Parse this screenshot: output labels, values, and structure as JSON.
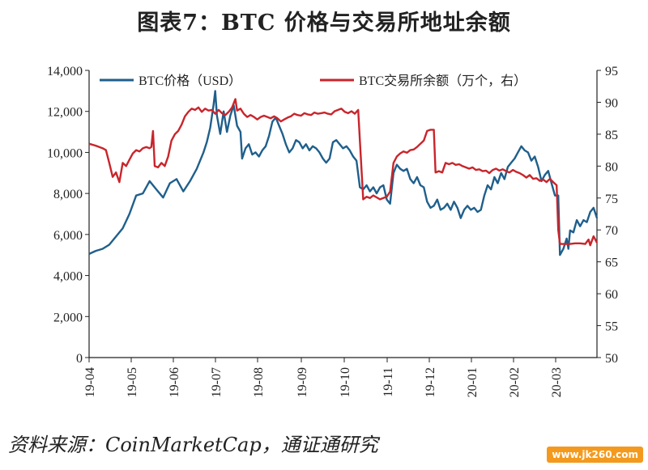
{
  "title": "图表7：BTC 价格与交易所地址余额",
  "source_note": "资料来源：CoinMarketCap，通证通研究",
  "watermark": "www.jk260.com",
  "colors": {
    "price": "#1f5f8b",
    "balance": "#c8252b",
    "axis": "#222222"
  },
  "chart_data": {
    "type": "line",
    "title": "BTC 价格与交易所地址余额",
    "x_ticks": [
      "19-04",
      "19-05",
      "19-06",
      "19-07",
      "19-08",
      "19-09",
      "19-10",
      "19-11",
      "19-12",
      "20-01",
      "20-02",
      "20-03"
    ],
    "y_left": {
      "lim": [
        0,
        14000
      ],
      "ticks": [
        0,
        2000,
        4000,
        6000,
        8000,
        10000,
        12000,
        14000
      ],
      "tick_labels": [
        "0",
        "2,000",
        "4,000",
        "6,000",
        "8,000",
        "10,000",
        "12,000",
        "14,000"
      ]
    },
    "y_right": {
      "lim": [
        50,
        95
      ],
      "ticks": [
        50,
        55,
        60,
        65,
        70,
        75,
        80,
        85,
        90,
        95
      ],
      "tick_labels": [
        "50",
        "55",
        "60",
        "65",
        "70",
        "75",
        "80",
        "85",
        "90",
        "95"
      ]
    },
    "legend_position": "top",
    "series": [
      {
        "name": "BTC价格（USD）",
        "axis": "left",
        "color": "#1f5f8b",
        "points": [
          [
            0,
            5050
          ],
          [
            4,
            5200
          ],
          [
            8,
            5300
          ],
          [
            12,
            5500
          ],
          [
            16,
            5900
          ],
          [
            20,
            6300
          ],
          [
            24,
            7000
          ],
          [
            28,
            7900
          ],
          [
            32,
            8000
          ],
          [
            36,
            8600
          ],
          [
            40,
            8200
          ],
          [
            44,
            7800
          ],
          [
            48,
            8500
          ],
          [
            52,
            8700
          ],
          [
            56,
            8100
          ],
          [
            60,
            8600
          ],
          [
            64,
            9200
          ],
          [
            68,
            10000
          ],
          [
            70,
            10500
          ],
          [
            72,
            11200
          ],
          [
            74,
            12300
          ],
          [
            75,
            13000
          ],
          [
            76,
            11800
          ],
          [
            78,
            10900
          ],
          [
            80,
            12000
          ],
          [
            82,
            11000
          ],
          [
            84,
            11800
          ],
          [
            86,
            12300
          ],
          [
            88,
            11300
          ],
          [
            90,
            11000
          ],
          [
            91,
            9700
          ],
          [
            93,
            10200
          ],
          [
            95,
            10400
          ],
          [
            97,
            9900
          ],
          [
            99,
            10000
          ],
          [
            101,
            9800
          ],
          [
            103,
            10100
          ],
          [
            105,
            10300
          ],
          [
            107,
            10800
          ],
          [
            109,
            11500
          ],
          [
            111,
            11700
          ],
          [
            113,
            11300
          ],
          [
            115,
            10900
          ],
          [
            117,
            10400
          ],
          [
            119,
            10000
          ],
          [
            121,
            10200
          ],
          [
            123,
            10600
          ],
          [
            125,
            10500
          ],
          [
            127,
            10200
          ],
          [
            129,
            10400
          ],
          [
            131,
            10100
          ],
          [
            133,
            10300
          ],
          [
            135,
            10200
          ],
          [
            137,
            10000
          ],
          [
            139,
            9700
          ],
          [
            141,
            9500
          ],
          [
            143,
            9700
          ],
          [
            145,
            10500
          ],
          [
            147,
            10600
          ],
          [
            149,
            10400
          ],
          [
            151,
            10200
          ],
          [
            153,
            10300
          ],
          [
            155,
            10100
          ],
          [
            157,
            9800
          ],
          [
            159,
            9600
          ],
          [
            161,
            8300
          ],
          [
            163,
            8200
          ],
          [
            165,
            8400
          ],
          [
            167,
            8100
          ],
          [
            169,
            8300
          ],
          [
            171,
            8000
          ],
          [
            173,
            8300
          ],
          [
            175,
            8400
          ],
          [
            177,
            7700
          ],
          [
            179,
            7500
          ],
          [
            181,
            9000
          ],
          [
            183,
            9400
          ],
          [
            185,
            9200
          ],
          [
            187,
            9100
          ],
          [
            189,
            9200
          ],
          [
            191,
            8700
          ],
          [
            193,
            8500
          ],
          [
            195,
            8800
          ],
          [
            197,
            8400
          ],
          [
            199,
            8300
          ],
          [
            201,
            7600
          ],
          [
            203,
            7300
          ],
          [
            205,
            7400
          ],
          [
            207,
            7700
          ],
          [
            209,
            7200
          ],
          [
            211,
            7300
          ],
          [
            213,
            7500
          ],
          [
            215,
            7200
          ],
          [
            217,
            7600
          ],
          [
            219,
            7300
          ],
          [
            221,
            6800
          ],
          [
            223,
            7200
          ],
          [
            225,
            7400
          ],
          [
            227,
            7200
          ],
          [
            229,
            7300
          ],
          [
            231,
            7100
          ],
          [
            233,
            7200
          ],
          [
            235,
            7900
          ],
          [
            237,
            8400
          ],
          [
            239,
            8200
          ],
          [
            241,
            8800
          ],
          [
            243,
            8500
          ],
          [
            245,
            9000
          ],
          [
            247,
            8700
          ],
          [
            249,
            9300
          ],
          [
            251,
            9500
          ],
          [
            253,
            9700
          ],
          [
            255,
            10000
          ],
          [
            257,
            10300
          ],
          [
            259,
            10100
          ],
          [
            261,
            10000
          ],
          [
            263,
            9600
          ],
          [
            265,
            9800
          ],
          [
            267,
            9300
          ],
          [
            269,
            8600
          ],
          [
            271,
            8900
          ],
          [
            273,
            9100
          ],
          [
            275,
            8500
          ],
          [
            277,
            7900
          ],
          [
            279,
            7900
          ],
          [
            280,
            5000
          ],
          [
            282,
            5300
          ],
          [
            284,
            5800
          ],
          [
            285,
            5300
          ],
          [
            286,
            6200
          ],
          [
            288,
            6100
          ],
          [
            290,
            6700
          ],
          [
            292,
            6400
          ],
          [
            294,
            6700
          ],
          [
            296,
            6600
          ],
          [
            298,
            7100
          ],
          [
            300,
            7300
          ],
          [
            302,
            6800
          ]
        ]
      },
      {
        "name": "BTC交易所余额（万个，右）",
        "axis": "right",
        "color": "#c8252b",
        "points": [
          [
            0,
            83.5
          ],
          [
            4,
            83.2
          ],
          [
            8,
            82.8
          ],
          [
            10,
            82.5
          ],
          [
            12,
            80.5
          ],
          [
            14,
            78.3
          ],
          [
            16,
            79.0
          ],
          [
            18,
            77.5
          ],
          [
            20,
            80.5
          ],
          [
            22,
            80.0
          ],
          [
            24,
            81.0
          ],
          [
            26,
            82.0
          ],
          [
            28,
            82.5
          ],
          [
            30,
            82.3
          ],
          [
            32,
            82.8
          ],
          [
            34,
            83.0
          ],
          [
            36,
            82.8
          ],
          [
            37,
            83.0
          ],
          [
            38,
            85.5
          ],
          [
            39,
            80.0
          ],
          [
            41,
            79.8
          ],
          [
            43,
            80.5
          ],
          [
            45,
            80.0
          ],
          [
            47,
            81.5
          ],
          [
            49,
            84.0
          ],
          [
            51,
            85.0
          ],
          [
            53,
            85.5
          ],
          [
            55,
            86.5
          ],
          [
            57,
            87.8
          ],
          [
            59,
            88.5
          ],
          [
            61,
            89.0
          ],
          [
            63,
            88.8
          ],
          [
            65,
            89.2
          ],
          [
            67,
            88.5
          ],
          [
            69,
            89.0
          ],
          [
            71,
            88.7
          ],
          [
            73,
            88.8
          ],
          [
            75,
            88.2
          ],
          [
            77,
            88.8
          ],
          [
            79,
            88.3
          ],
          [
            81,
            88.0
          ],
          [
            83,
            88.5
          ],
          [
            85,
            89.2
          ],
          [
            87,
            90.5
          ],
          [
            88,
            88.7
          ],
          [
            90,
            89.0
          ],
          [
            92,
            88.2
          ],
          [
            94,
            87.7
          ],
          [
            96,
            88.0
          ],
          [
            98,
            87.7
          ],
          [
            100,
            87.3
          ],
          [
            102,
            87.7
          ],
          [
            104,
            87.9
          ],
          [
            106,
            87.7
          ],
          [
            108,
            87.5
          ],
          [
            110,
            87.8
          ],
          [
            112,
            87.5
          ],
          [
            114,
            87.0
          ],
          [
            116,
            87.3
          ],
          [
            118,
            87.6
          ],
          [
            120,
            87.8
          ],
          [
            122,
            88.2
          ],
          [
            124,
            88.0
          ],
          [
            126,
            87.9
          ],
          [
            128,
            88.3
          ],
          [
            130,
            88.1
          ],
          [
            132,
            88.0
          ],
          [
            134,
            88.4
          ],
          [
            136,
            88.2
          ],
          [
            138,
            88.3
          ],
          [
            140,
            88.4
          ],
          [
            142,
            88.2
          ],
          [
            144,
            88.1
          ],
          [
            146,
            88.6
          ],
          [
            148,
            88.8
          ],
          [
            150,
            89.0
          ],
          [
            152,
            88.5
          ],
          [
            154,
            88.3
          ],
          [
            156,
            88.6
          ],
          [
            158,
            88.2
          ],
          [
            160,
            88.8
          ],
          [
            161,
            84.0
          ],
          [
            163,
            74.8
          ],
          [
            165,
            75.2
          ],
          [
            167,
            75.0
          ],
          [
            169,
            75.4
          ],
          [
            171,
            75.1
          ],
          [
            173,
            74.8
          ],
          [
            175,
            75.0
          ],
          [
            177,
            75.2
          ],
          [
            179,
            76.0
          ],
          [
            181,
            80.5
          ],
          [
            183,
            81.5
          ],
          [
            185,
            82.0
          ],
          [
            187,
            82.3
          ],
          [
            189,
            82.1
          ],
          [
            191,
            82.5
          ],
          [
            193,
            82.6
          ],
          [
            195,
            83.0
          ],
          [
            197,
            83.5
          ],
          [
            199,
            84.0
          ],
          [
            201,
            85.5
          ],
          [
            203,
            85.7
          ],
          [
            205,
            85.7
          ],
          [
            206,
            79.0
          ],
          [
            208,
            79.2
          ],
          [
            210,
            79.0
          ],
          [
            212,
            80.5
          ],
          [
            214,
            80.3
          ],
          [
            216,
            80.5
          ],
          [
            218,
            80.2
          ],
          [
            220,
            80.3
          ],
          [
            222,
            80.0
          ],
          [
            224,
            79.8
          ],
          [
            226,
            79.6
          ],
          [
            228,
            79.8
          ],
          [
            230,
            79.4
          ],
          [
            232,
            79.5
          ],
          [
            234,
            79.2
          ],
          [
            236,
            79.3
          ],
          [
            238,
            78.9
          ],
          [
            240,
            79.4
          ],
          [
            242,
            79.6
          ],
          [
            244,
            79.3
          ],
          [
            246,
            79.5
          ],
          [
            248,
            79.2
          ],
          [
            250,
            79.0
          ],
          [
            252,
            79.4
          ],
          [
            254,
            79.1
          ],
          [
            256,
            78.9
          ],
          [
            258,
            78.6
          ],
          [
            260,
            78.2
          ],
          [
            262,
            78.6
          ],
          [
            264,
            78.0
          ],
          [
            266,
            78.1
          ],
          [
            268,
            77.7
          ],
          [
            270,
            77.9
          ],
          [
            272,
            77.5
          ],
          [
            274,
            78.0
          ],
          [
            276,
            77.5
          ],
          [
            278,
            77.0
          ],
          [
            279,
            70.0
          ],
          [
            280,
            67.8
          ],
          [
            283,
            67.8
          ],
          [
            286,
            67.8
          ],
          [
            289,
            67.9
          ],
          [
            292,
            67.9
          ],
          [
            295,
            67.8
          ],
          [
            297,
            68.5
          ],
          [
            298,
            67.6
          ],
          [
            300,
            69.0
          ],
          [
            302,
            68.0
          ]
        ]
      }
    ]
  }
}
